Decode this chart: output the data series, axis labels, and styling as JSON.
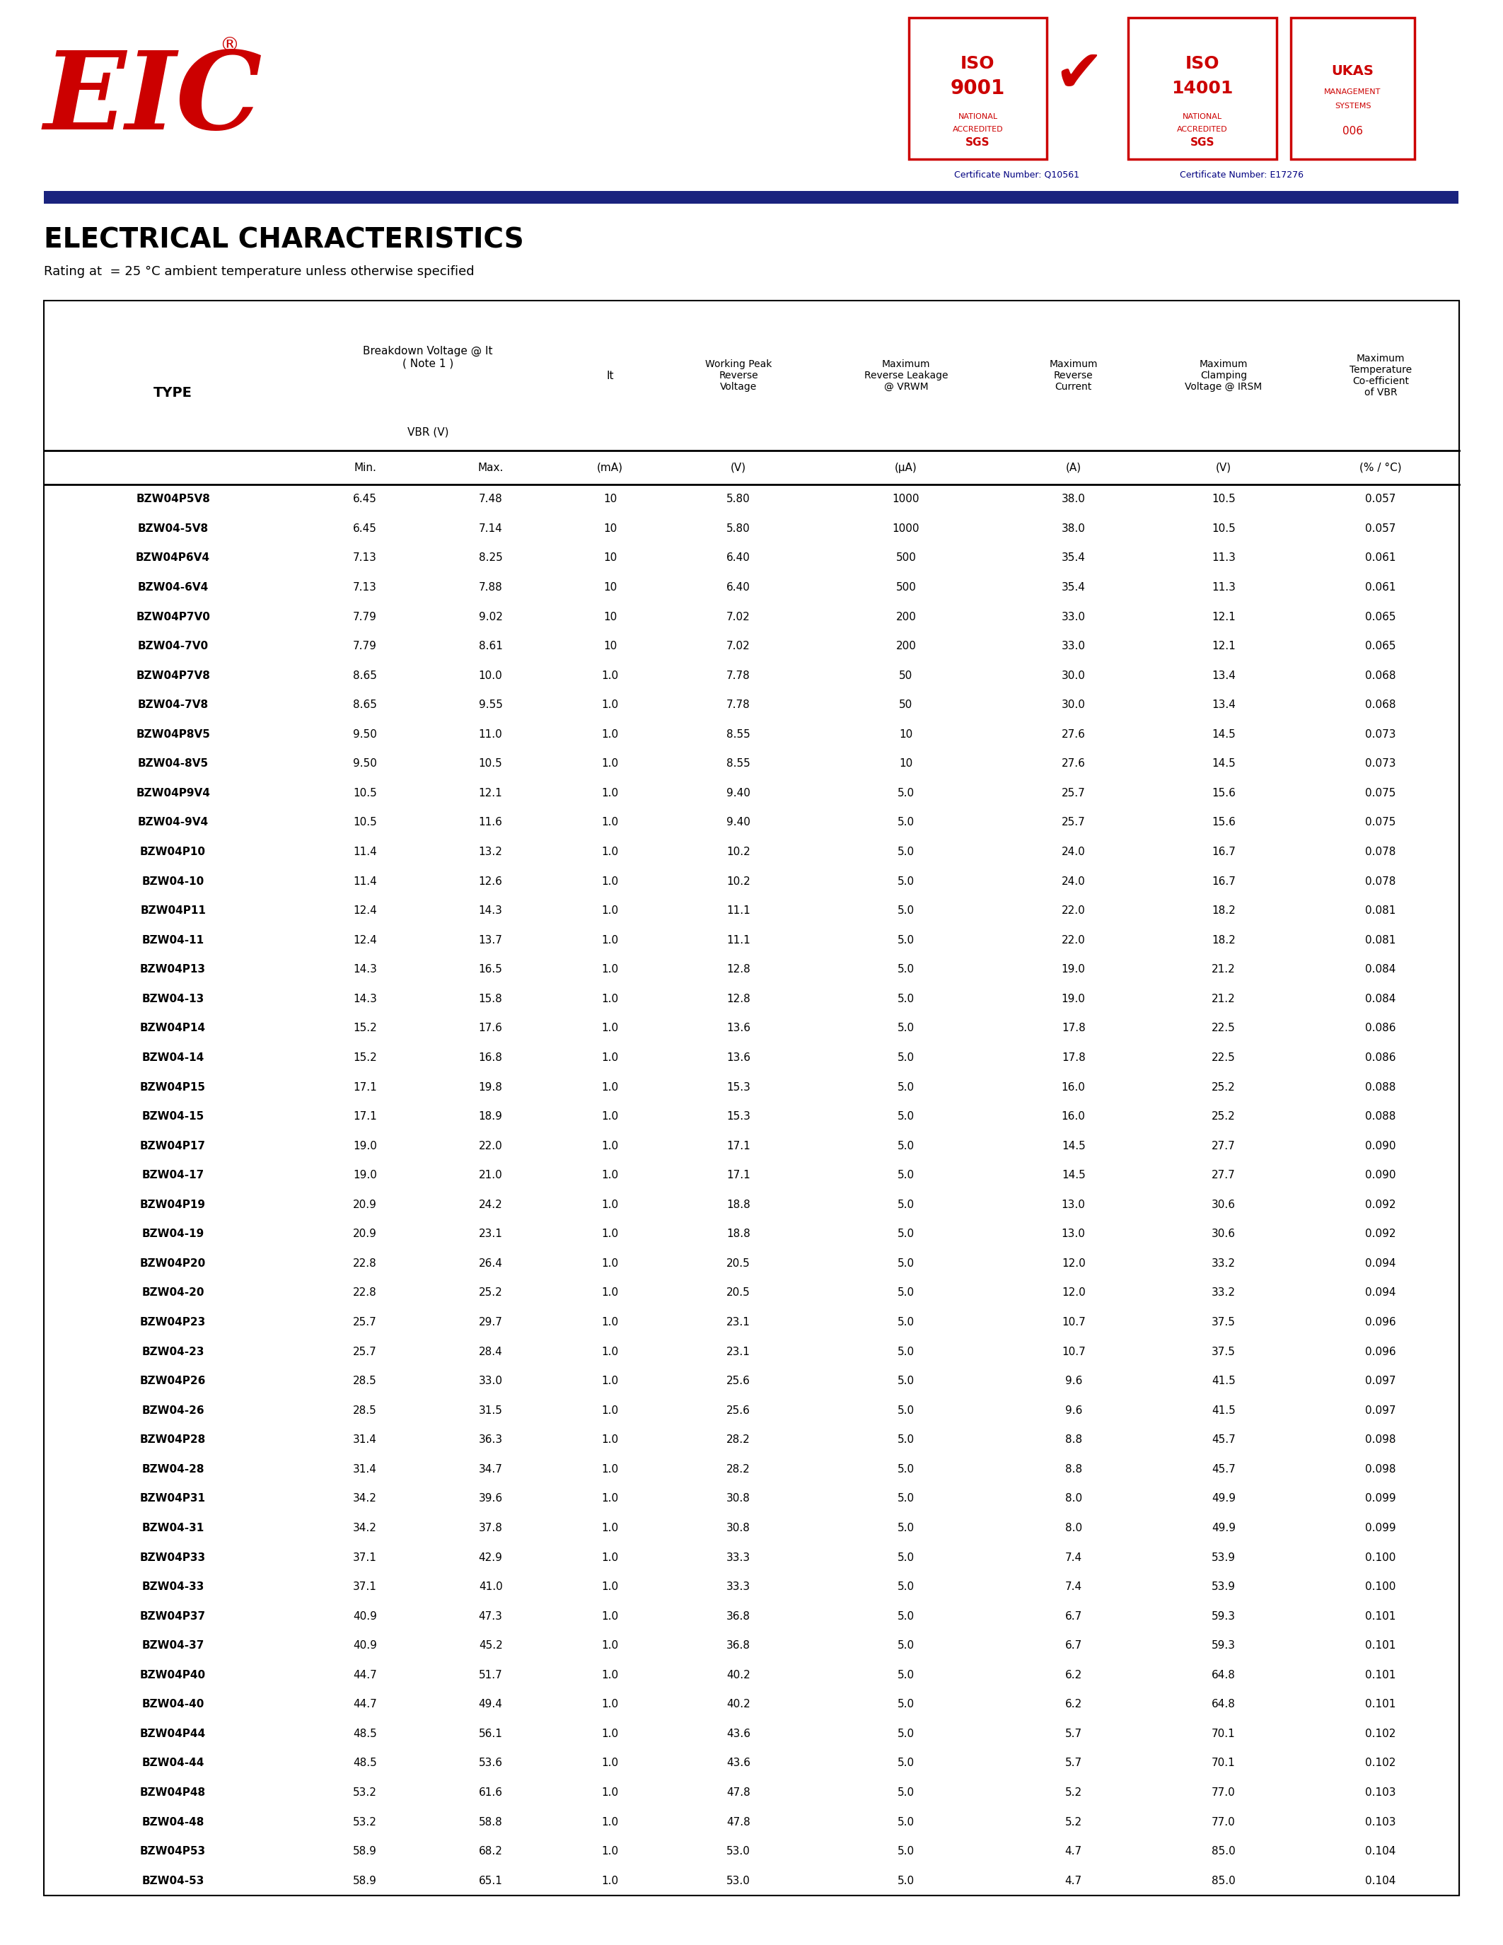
{
  "title": "ELECTRICAL CHARACTERISTICS",
  "subtitle": "Rating at  = 25 °C ambient temperature unless otherwise specified",
  "rows": [
    [
      "BZW04P5V8",
      "6.45",
      "7.48",
      "10",
      "5.80",
      "1000",
      "38.0",
      "10.5",
      "0.057"
    ],
    [
      "BZW04-5V8",
      "6.45",
      "7.14",
      "10",
      "5.80",
      "1000",
      "38.0",
      "10.5",
      "0.057"
    ],
    [
      "BZW04P6V4",
      "7.13",
      "8.25",
      "10",
      "6.40",
      "500",
      "35.4",
      "11.3",
      "0.061"
    ],
    [
      "BZW04-6V4",
      "7.13",
      "7.88",
      "10",
      "6.40",
      "500",
      "35.4",
      "11.3",
      "0.061"
    ],
    [
      "BZW04P7V0",
      "7.79",
      "9.02",
      "10",
      "7.02",
      "200",
      "33.0",
      "12.1",
      "0.065"
    ],
    [
      "BZW04-7V0",
      "7.79",
      "8.61",
      "10",
      "7.02",
      "200",
      "33.0",
      "12.1",
      "0.065"
    ],
    [
      "BZW04P7V8",
      "8.65",
      "10.0",
      "1.0",
      "7.78",
      "50",
      "30.0",
      "13.4",
      "0.068"
    ],
    [
      "BZW04-7V8",
      "8.65",
      "9.55",
      "1.0",
      "7.78",
      "50",
      "30.0",
      "13.4",
      "0.068"
    ],
    [
      "BZW04P8V5",
      "9.50",
      "11.0",
      "1.0",
      "8.55",
      "10",
      "27.6",
      "14.5",
      "0.073"
    ],
    [
      "BZW04-8V5",
      "9.50",
      "10.5",
      "1.0",
      "8.55",
      "10",
      "27.6",
      "14.5",
      "0.073"
    ],
    [
      "BZW04P9V4",
      "10.5",
      "12.1",
      "1.0",
      "9.40",
      "5.0",
      "25.7",
      "15.6",
      "0.075"
    ],
    [
      "BZW04-9V4",
      "10.5",
      "11.6",
      "1.0",
      "9.40",
      "5.0",
      "25.7",
      "15.6",
      "0.075"
    ],
    [
      "BZW04P10",
      "11.4",
      "13.2",
      "1.0",
      "10.2",
      "5.0",
      "24.0",
      "16.7",
      "0.078"
    ],
    [
      "BZW04-10",
      "11.4",
      "12.6",
      "1.0",
      "10.2",
      "5.0",
      "24.0",
      "16.7",
      "0.078"
    ],
    [
      "BZW04P11",
      "12.4",
      "14.3",
      "1.0",
      "11.1",
      "5.0",
      "22.0",
      "18.2",
      "0.081"
    ],
    [
      "BZW04-11",
      "12.4",
      "13.7",
      "1.0",
      "11.1",
      "5.0",
      "22.0",
      "18.2",
      "0.081"
    ],
    [
      "BZW04P13",
      "14.3",
      "16.5",
      "1.0",
      "12.8",
      "5.0",
      "19.0",
      "21.2",
      "0.084"
    ],
    [
      "BZW04-13",
      "14.3",
      "15.8",
      "1.0",
      "12.8",
      "5.0",
      "19.0",
      "21.2",
      "0.084"
    ],
    [
      "BZW04P14",
      "15.2",
      "17.6",
      "1.0",
      "13.6",
      "5.0",
      "17.8",
      "22.5",
      "0.086"
    ],
    [
      "BZW04-14",
      "15.2",
      "16.8",
      "1.0",
      "13.6",
      "5.0",
      "17.8",
      "22.5",
      "0.086"
    ],
    [
      "BZW04P15",
      "17.1",
      "19.8",
      "1.0",
      "15.3",
      "5.0",
      "16.0",
      "25.2",
      "0.088"
    ],
    [
      "BZW04-15",
      "17.1",
      "18.9",
      "1.0",
      "15.3",
      "5.0",
      "16.0",
      "25.2",
      "0.088"
    ],
    [
      "BZW04P17",
      "19.0",
      "22.0",
      "1.0",
      "17.1",
      "5.0",
      "14.5",
      "27.7",
      "0.090"
    ],
    [
      "BZW04-17",
      "19.0",
      "21.0",
      "1.0",
      "17.1",
      "5.0",
      "14.5",
      "27.7",
      "0.090"
    ],
    [
      "BZW04P19",
      "20.9",
      "24.2",
      "1.0",
      "18.8",
      "5.0",
      "13.0",
      "30.6",
      "0.092"
    ],
    [
      "BZW04-19",
      "20.9",
      "23.1",
      "1.0",
      "18.8",
      "5.0",
      "13.0",
      "30.6",
      "0.092"
    ],
    [
      "BZW04P20",
      "22.8",
      "26.4",
      "1.0",
      "20.5",
      "5.0",
      "12.0",
      "33.2",
      "0.094"
    ],
    [
      "BZW04-20",
      "22.8",
      "25.2",
      "1.0",
      "20.5",
      "5.0",
      "12.0",
      "33.2",
      "0.094"
    ],
    [
      "BZW04P23",
      "25.7",
      "29.7",
      "1.0",
      "23.1",
      "5.0",
      "10.7",
      "37.5",
      "0.096"
    ],
    [
      "BZW04-23",
      "25.7",
      "28.4",
      "1.0",
      "23.1",
      "5.0",
      "10.7",
      "37.5",
      "0.096"
    ],
    [
      "BZW04P26",
      "28.5",
      "33.0",
      "1.0",
      "25.6",
      "5.0",
      "9.6",
      "41.5",
      "0.097"
    ],
    [
      "BZW04-26",
      "28.5",
      "31.5",
      "1.0",
      "25.6",
      "5.0",
      "9.6",
      "41.5",
      "0.097"
    ],
    [
      "BZW04P28",
      "31.4",
      "36.3",
      "1.0",
      "28.2",
      "5.0",
      "8.8",
      "45.7",
      "0.098"
    ],
    [
      "BZW04-28",
      "31.4",
      "34.7",
      "1.0",
      "28.2",
      "5.0",
      "8.8",
      "45.7",
      "0.098"
    ],
    [
      "BZW04P31",
      "34.2",
      "39.6",
      "1.0",
      "30.8",
      "5.0",
      "8.0",
      "49.9",
      "0.099"
    ],
    [
      "BZW04-31",
      "34.2",
      "37.8",
      "1.0",
      "30.8",
      "5.0",
      "8.0",
      "49.9",
      "0.099"
    ],
    [
      "BZW04P33",
      "37.1",
      "42.9",
      "1.0",
      "33.3",
      "5.0",
      "7.4",
      "53.9",
      "0.100"
    ],
    [
      "BZW04-33",
      "37.1",
      "41.0",
      "1.0",
      "33.3",
      "5.0",
      "7.4",
      "53.9",
      "0.100"
    ],
    [
      "BZW04P37",
      "40.9",
      "47.3",
      "1.0",
      "36.8",
      "5.0",
      "6.7",
      "59.3",
      "0.101"
    ],
    [
      "BZW04-37",
      "40.9",
      "45.2",
      "1.0",
      "36.8",
      "5.0",
      "6.7",
      "59.3",
      "0.101"
    ],
    [
      "BZW04P40",
      "44.7",
      "51.7",
      "1.0",
      "40.2",
      "5.0",
      "6.2",
      "64.8",
      "0.101"
    ],
    [
      "BZW04-40",
      "44.7",
      "49.4",
      "1.0",
      "40.2",
      "5.0",
      "6.2",
      "64.8",
      "0.101"
    ],
    [
      "BZW04P44",
      "48.5",
      "56.1",
      "1.0",
      "43.6",
      "5.0",
      "5.7",
      "70.1",
      "0.102"
    ],
    [
      "BZW04-44",
      "48.5",
      "53.6",
      "1.0",
      "43.6",
      "5.0",
      "5.7",
      "70.1",
      "0.102"
    ],
    [
      "BZW04P48",
      "53.2",
      "61.6",
      "1.0",
      "47.8",
      "5.0",
      "5.2",
      "77.0",
      "0.103"
    ],
    [
      "BZW04-48",
      "53.2",
      "58.8",
      "1.0",
      "47.8",
      "5.0",
      "5.2",
      "77.0",
      "0.103"
    ],
    [
      "BZW04P53",
      "58.9",
      "68.2",
      "1.0",
      "53.0",
      "5.0",
      "4.7",
      "85.0",
      "0.104"
    ],
    [
      "BZW04-53",
      "58.9",
      "65.1",
      "1.0",
      "53.0",
      "5.0",
      "4.7",
      "85.0",
      "0.104"
    ]
  ],
  "bg_color": "#ffffff",
  "text_color": "#000000",
  "blue_bar_color": "#1a237e",
  "red_color": "#cc0000",
  "navy_color": "#000080",
  "header_sep_lw": 2.0,
  "outer_lw": 1.5,
  "inner_lw": 0.8
}
